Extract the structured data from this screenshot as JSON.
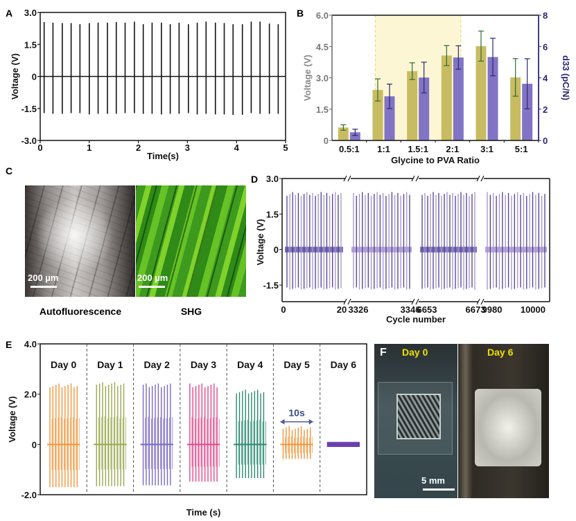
{
  "chart_data": [
    {
      "panel": "A",
      "type": "line",
      "title": "",
      "xlabel": "Time(s)",
      "ylabel": "Voltage (V)",
      "xlim": [
        0,
        5
      ],
      "ylim": [
        -3.0,
        3.0
      ],
      "xticks": [
        "0",
        "1",
        "2",
        "3",
        "4",
        "5"
      ],
      "yticks": [
        "3.0",
        "1.5",
        "0",
        "-1.5",
        "-3.0"
      ],
      "color": "#000000",
      "description": "Periodic voltage spikes, ~27 pulses in 5 s",
      "pulse_times": [
        0.08,
        0.26,
        0.45,
        0.63,
        0.81,
        1.0,
        1.18,
        1.37,
        1.55,
        1.73,
        1.92,
        2.1,
        2.28,
        2.47,
        2.65,
        2.83,
        3.02,
        3.2,
        3.38,
        3.57,
        3.75,
        3.93,
        4.12,
        4.3,
        4.48,
        4.67,
        4.85
      ],
      "pulse_peaks": [
        2.55,
        2.52,
        2.5,
        2.5,
        2.45,
        2.5,
        2.52,
        2.52,
        2.55,
        2.52,
        2.57,
        2.45,
        2.52,
        2.52,
        2.45,
        2.52,
        2.45,
        2.52,
        2.57,
        2.52,
        2.5,
        2.45,
        2.45,
        2.57,
        2.57,
        2.48,
        2.45
      ],
      "pulse_troughs": [
        -1.72,
        -1.75,
        -1.75,
        -1.72,
        -1.72,
        -1.78,
        -1.75,
        -1.75,
        -1.75,
        -1.72,
        -1.72,
        -1.75,
        -1.75,
        -1.78,
        -1.75,
        -1.75,
        -1.72,
        -1.78,
        -1.75,
        -1.78,
        -1.78,
        -1.8,
        -1.8,
        -1.72,
        -1.75,
        -1.75,
        -1.75
      ]
    },
    {
      "panel": "B",
      "type": "bar",
      "title": "",
      "xlabel": "Glycine to PVA Ratio",
      "ylabel": "Voltage (V)",
      "y2label": "d33 (pC/N)",
      "categories": [
        "0.5:1",
        "1:1",
        "1.5:1",
        "2:1",
        "3:1",
        "5:1"
      ],
      "ylim": [
        0,
        6.0
      ],
      "y2lim": [
        0,
        8
      ],
      "yticks": [
        "0",
        "1.5",
        "3.0",
        "4.5",
        "6.0"
      ],
      "y2ticks": [
        "0",
        "2",
        "4",
        "6",
        "8"
      ],
      "highlight_range": [
        "1:1",
        "2:1"
      ],
      "series": [
        {
          "name": "Voltage",
          "axis": "left",
          "color": "#c8bc62",
          "err_color": "#2e6b2e",
          "values": [
            0.62,
            2.42,
            3.32,
            4.07,
            4.52,
            3.02
          ],
          "errors": [
            0.13,
            0.53,
            0.4,
            0.48,
            0.72,
            0.9
          ]
        },
        {
          "name": "d33",
          "axis": "right",
          "color": "#8274c4",
          "err_color": "#2b2670",
          "values": [
            0.52,
            2.82,
            4.02,
            5.3,
            5.33,
            3.62
          ],
          "errors": [
            0.2,
            0.78,
            0.98,
            0.75,
            1.2,
            1.6
          ]
        }
      ]
    },
    {
      "panel": "D",
      "type": "line",
      "xlabel": "Cycle number",
      "ylabel": "Voltage (V)",
      "ylim": [
        -2.2,
        3.0
      ],
      "yticks": [
        "3.0",
        "1.5",
        "0",
        "-1.5"
      ],
      "segments": [
        {
          "start": "0",
          "end": "20"
        },
        {
          "start": "3326",
          "end": "3346"
        },
        {
          "start": "6653",
          "end": "6673"
        },
        {
          "start": "9980",
          "end": "10000"
        }
      ],
      "pulses_per_segment": 20,
      "peak_voltage": 2.35,
      "trough_voltage": -1.6,
      "colors": [
        "#4b3f8e",
        "#a58fd0"
      ]
    },
    {
      "panel": "E",
      "type": "line",
      "xlabel": "Time (s)",
      "ylabel": "Voltage (V)",
      "ylim": [
        -2.0,
        4.0
      ],
      "yticks": [
        "4.0",
        "2.0",
        "0",
        "-2.0"
      ],
      "annotation": "10s",
      "days": [
        {
          "label": "Day 0",
          "color": "#f0953a",
          "peak": 2.35,
          "trough": -1.7
        },
        {
          "label": "Day 1",
          "color": "#9aa84e",
          "peak": 2.4,
          "trough": -1.62
        },
        {
          "label": "Day 2",
          "color": "#7b68c2",
          "peak": 2.35,
          "trough": -1.55
        },
        {
          "label": "Day 3",
          "color": "#e0488a",
          "peak": 2.35,
          "trough": -1.48
        },
        {
          "label": "Day 4",
          "color": "#2a8a70",
          "peak": 2.1,
          "trough": -1.3
        },
        {
          "label": "Day 5",
          "color": "#f0953a",
          "peak": 0.65,
          "trough": -0.5
        },
        {
          "label": "Day 6",
          "color": "#6b3fb0",
          "peak": 0.05,
          "trough": -0.05
        }
      ]
    }
  ],
  "panels": {
    "a_label": "A",
    "b_label": "B",
    "c_label": "C",
    "d_label": "D",
    "e_label": "E",
    "f_label": "F",
    "c": {
      "left_caption": "Autofluorescence",
      "right_caption": "SHG",
      "scale_left": "200 µm",
      "scale_right": "200 µm"
    },
    "f": {
      "left_title": "Day 0",
      "right_title": "Day 6",
      "scale": "5 mm"
    }
  }
}
